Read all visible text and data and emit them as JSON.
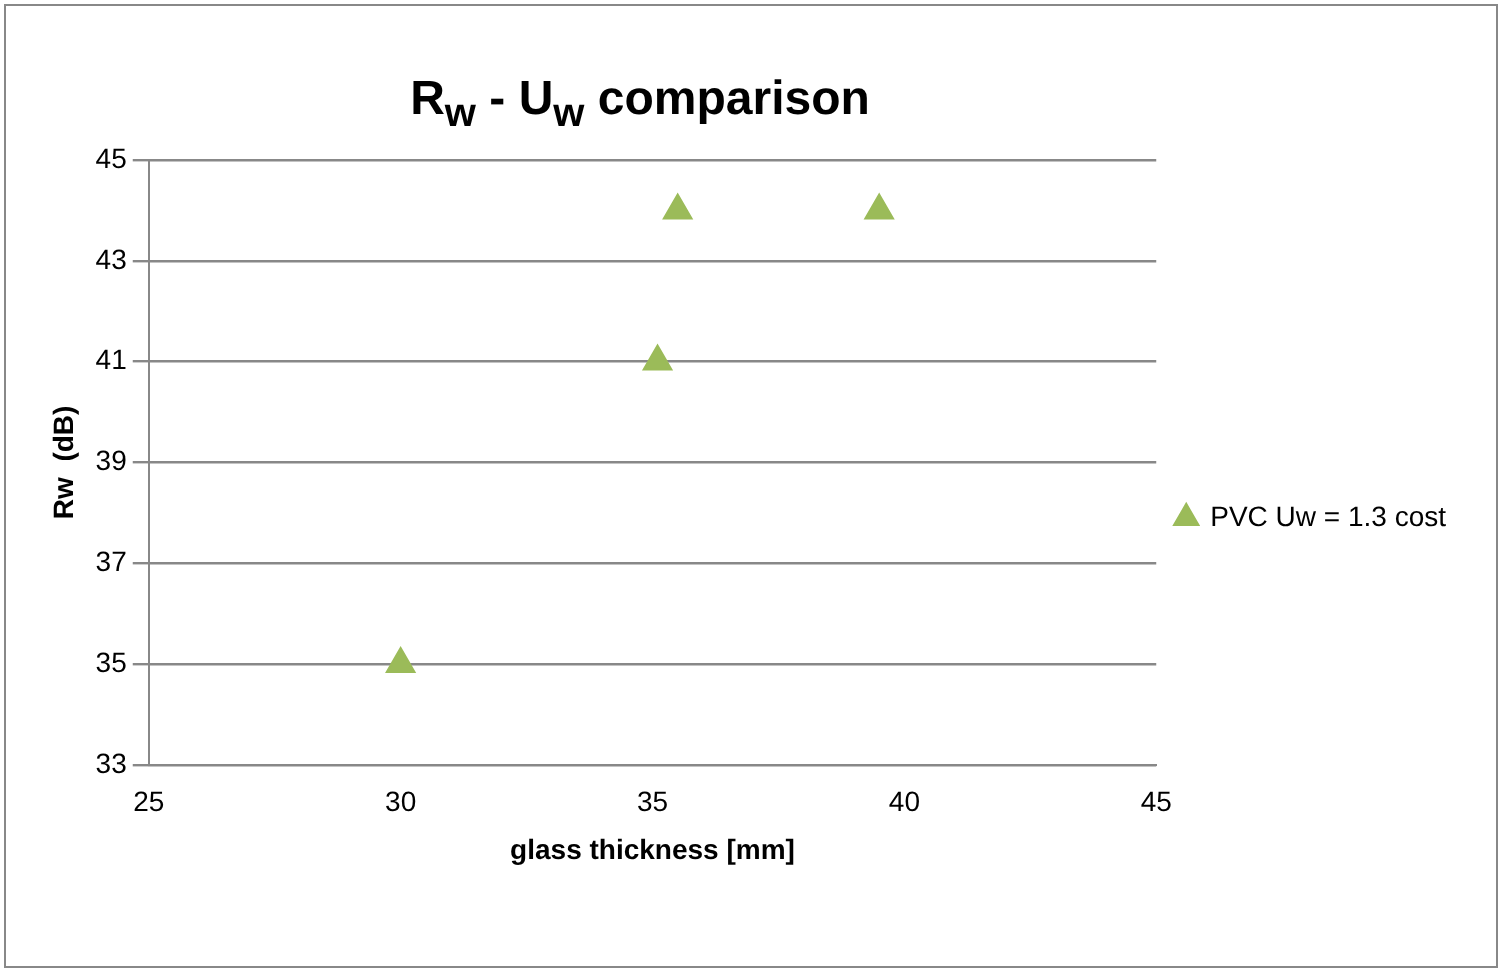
{
  "chart_data": {
    "type": "scatter",
    "title": "R$_{w}$ - U$_{w}$ comparison",
    "xlabel": "glass thickness [mm]",
    "ylabel": "Rw  (dB)",
    "series": [
      {
        "name": "PVC Uw = 1.3 cost",
        "color": "#9bbb59",
        "x": [
          30.0,
          35.1,
          35.5,
          39.5
        ],
        "values": [
          35,
          41,
          44,
          44
        ]
      }
    ],
    "xlim": [
      25,
      45
    ],
    "xticks": [
      25,
      30,
      35,
      40,
      45
    ],
    "ylim": [
      33,
      45
    ],
    "yticks": [
      33,
      35,
      37,
      39,
      41,
      43,
      45
    ],
    "grid": "y",
    "legend": "right",
    "marker": "triangle"
  }
}
